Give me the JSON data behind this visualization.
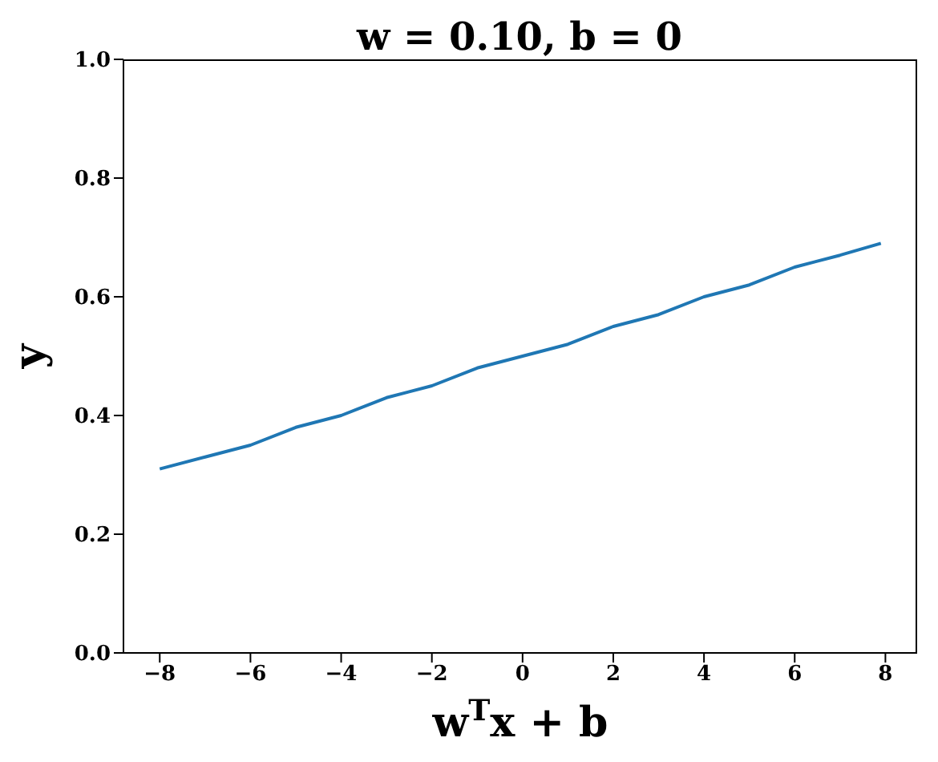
{
  "chart_data": {
    "type": "line",
    "title": "w = 0.10, b = 0",
    "xlabel": "w$^{T}$x + b",
    "ylabel": "y",
    "x": [
      -8,
      -7,
      -6,
      -5,
      -4,
      -3,
      -2,
      -1,
      0,
      1,
      2,
      3,
      4,
      5,
      6,
      7,
      7.9
    ],
    "series": [
      {
        "color": "#1f77b4",
        "values": [
          0.31,
          0.33,
          0.35,
          0.38,
          0.4,
          0.43,
          0.45,
          0.48,
          0.5,
          0.52,
          0.55,
          0.57,
          0.6,
          0.62,
          0.65,
          0.67,
          0.69
        ]
      }
    ],
    "xlim": [
      -8.8,
      8.7
    ],
    "ylim": [
      0,
      1
    ],
    "xticks": [
      {
        "value": -8,
        "label": "−8"
      },
      {
        "value": -6,
        "label": "−6"
      },
      {
        "value": -4,
        "label": "−4"
      },
      {
        "value": -2,
        "label": "−2"
      },
      0,
      2,
      4,
      6,
      8
    ],
    "yticks": [
      {
        "value": 0,
        "label": "0.0"
      },
      {
        "value": 0.2,
        "label": "0.2"
      },
      {
        "value": 0.4,
        "label": "0.4"
      },
      {
        "value": 0.6,
        "label": "0.6"
      },
      {
        "value": 0.8,
        "label": "0.8"
      },
      {
        "value": 1,
        "label": "1.0"
      }
    ],
    "grid": false,
    "legend": false,
    "marker": "none",
    "line_style": "solid"
  }
}
